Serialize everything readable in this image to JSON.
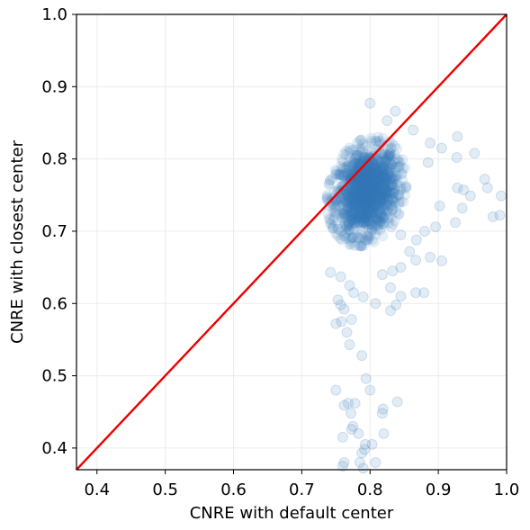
{
  "chart_data": {
    "type": "scatter",
    "title": "",
    "xlabel": "CNRE with default center",
    "ylabel": "CNRE with closest center",
    "xlim": [
      0.37,
      1.0
    ],
    "ylim": [
      0.37,
      1.0
    ],
    "xticks": [
      0.4,
      0.5,
      0.6,
      0.7,
      0.8,
      0.9,
      1.0
    ],
    "yticks": [
      0.4,
      0.5,
      0.6,
      0.7,
      0.8,
      0.9,
      1.0
    ],
    "xtick_labels": [
      "0.4",
      "0.5",
      "0.6",
      "0.7",
      "0.8",
      "0.9",
      "1.0"
    ],
    "ytick_labels": [
      "0.4",
      "0.5",
      "0.6",
      "0.7",
      "0.8",
      "0.9",
      "1.0"
    ],
    "grid": true,
    "point_color": "#3a7ebf",
    "point_alpha": 0.12,
    "reference_line": {
      "from": [
        0.37,
        0.37
      ],
      "to": [
        1.0,
        1.0
      ],
      "color": "#ee0000"
    },
    "cluster": {
      "center": [
        0.795,
        0.755
      ],
      "spread_x": 0.022,
      "spread_y": 0.028
    },
    "points": [
      [
        0.8,
        0.877
      ],
      [
        0.837,
        0.866
      ],
      [
        0.825,
        0.853
      ],
      [
        0.863,
        0.84
      ],
      [
        0.928,
        0.831
      ],
      [
        0.888,
        0.822
      ],
      [
        0.905,
        0.815
      ],
      [
        0.953,
        0.808
      ],
      [
        0.927,
        0.802
      ],
      [
        0.885,
        0.795
      ],
      [
        0.968,
        0.772
      ],
      [
        0.972,
        0.76
      ],
      [
        0.928,
        0.76
      ],
      [
        0.937,
        0.757
      ],
      [
        0.992,
        0.749
      ],
      [
        0.947,
        0.749
      ],
      [
        0.935,
        0.732
      ],
      [
        0.902,
        0.735
      ],
      [
        0.99,
        0.722
      ],
      [
        0.98,
        0.72
      ],
      [
        0.925,
        0.712
      ],
      [
        0.896,
        0.706
      ],
      [
        0.88,
        0.7
      ],
      [
        0.845,
        0.695
      ],
      [
        0.868,
        0.688
      ],
      [
        0.858,
        0.672
      ],
      [
        0.867,
        0.66
      ],
      [
        0.888,
        0.664
      ],
      [
        0.905,
        0.659
      ],
      [
        0.845,
        0.65
      ],
      [
        0.833,
        0.645
      ],
      [
        0.818,
        0.64
      ],
      [
        0.867,
        0.615
      ],
      [
        0.879,
        0.615
      ],
      [
        0.845,
        0.61
      ],
      [
        0.83,
        0.622
      ],
      [
        0.838,
        0.598
      ],
      [
        0.83,
        0.59
      ],
      [
        0.808,
        0.6
      ],
      [
        0.79,
        0.609
      ],
      [
        0.776,
        0.615
      ],
      [
        0.757,
        0.637
      ],
      [
        0.742,
        0.643
      ],
      [
        0.77,
        0.625
      ],
      [
        0.753,
        0.605
      ],
      [
        0.757,
        0.598
      ],
      [
        0.762,
        0.592
      ],
      [
        0.773,
        0.578
      ],
      [
        0.758,
        0.575
      ],
      [
        0.75,
        0.572
      ],
      [
        0.766,
        0.56
      ],
      [
        0.77,
        0.543
      ],
      [
        0.788,
        0.528
      ],
      [
        0.794,
        0.496
      ],
      [
        0.8,
        0.48
      ],
      [
        0.75,
        0.48
      ],
      [
        0.768,
        0.462
      ],
      [
        0.778,
        0.462
      ],
      [
        0.762,
        0.459
      ],
      [
        0.772,
        0.448
      ],
      [
        0.819,
        0.454
      ],
      [
        0.818,
        0.448
      ],
      [
        0.84,
        0.464
      ],
      [
        0.775,
        0.43
      ],
      [
        0.773,
        0.426
      ],
      [
        0.783,
        0.42
      ],
      [
        0.76,
        0.415
      ],
      [
        0.82,
        0.42
      ],
      [
        0.793,
        0.405
      ],
      [
        0.803,
        0.405
      ],
      [
        0.788,
        0.393
      ],
      [
        0.785,
        0.38
      ],
      [
        0.762,
        0.38
      ],
      [
        0.76,
        0.375
      ],
      [
        0.79,
        0.372
      ],
      [
        0.808,
        0.38
      ],
      [
        0.792,
        0.398
      ]
    ]
  }
}
